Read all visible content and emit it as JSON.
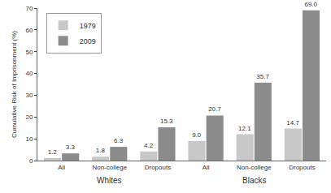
{
  "chart_data": {
    "type": "bar",
    "y_label": "Cumulative Risk of Imprisonment (%)",
    "categories": [
      "All",
      "Non-college",
      "Dropouts",
      "All",
      "Non-college",
      "Dropouts"
    ],
    "groups": [
      "Whites",
      "Whites",
      "Whites",
      "Blacks",
      "Blacks",
      "Blacks"
    ],
    "series": [
      {
        "name": "1979",
        "color": "#c8c8c8",
        "values": [
          1.2,
          1.8,
          4.2,
          9.0,
          12.1,
          14.7
        ],
        "value_labels": [
          "1.2",
          "1.8",
          "4.2",
          "9.0",
          "12.1",
          "14.7"
        ]
      },
      {
        "name": "2009",
        "color": "#8c8c8c",
        "values": [
          3.3,
          6.3,
          15.3,
          20.7,
          35.7,
          69.0
        ],
        "value_labels": [
          "3.3",
          "6.3",
          "15.3",
          "20.7",
          "35.7",
          "69.0"
        ]
      }
    ],
    "ylim": [
      0,
      70
    ],
    "yticks": [
      0,
      10,
      20,
      30,
      40,
      50,
      60,
      70
    ],
    "grid": false,
    "legend": "top-left",
    "data_labels": true
  }
}
